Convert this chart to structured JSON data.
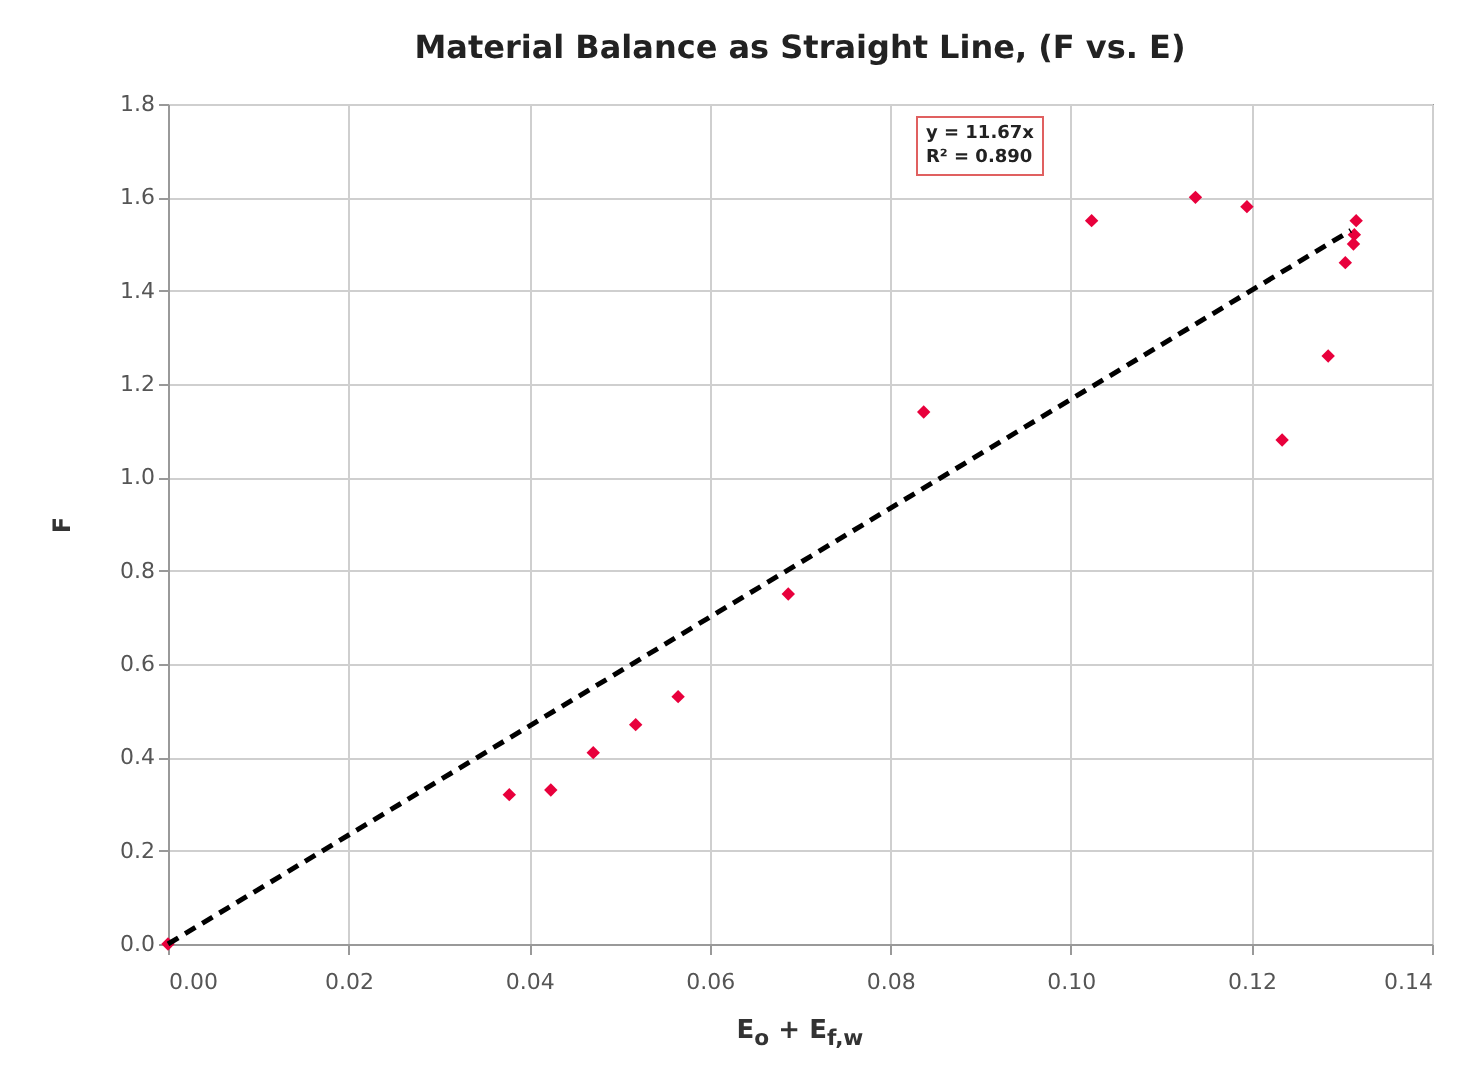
{
  "chart_data": {
    "type": "scatter",
    "title": "Material Balance as Straight Line, (F vs. E)",
    "xlabel": "E$_{o}$ + E$_{f,w}$",
    "ylabel": "F",
    "xlim": [
      0,
      0.14
    ],
    "xticks": [
      {
        "value": 0,
        "label": "0.00"
      },
      {
        "value": 0.02,
        "label": "0.02"
      },
      {
        "value": 0.04,
        "label": "0.04"
      },
      {
        "value": 0.06,
        "label": "0.06"
      },
      {
        "value": 0.08,
        "label": "0.08"
      },
      {
        "value": 0.1,
        "label": "0.10"
      },
      {
        "value": 0.12,
        "label": "0.12"
      },
      {
        "value": 0.14,
        "label": "0.14"
      }
    ],
    "ylim": [
      0,
      1.8
    ],
    "yticks": [
      {
        "value": 0,
        "label": "0.0"
      },
      {
        "value": 0.2,
        "label": "0.2"
      },
      {
        "value": 0.4,
        "label": "0.4"
      },
      {
        "value": 0.6,
        "label": "0.6"
      },
      {
        "value": 0.8,
        "label": "0.8"
      },
      {
        "value": 1,
        "label": "1.0"
      },
      {
        "value": 1.2,
        "label": "1.2"
      },
      {
        "value": 1.4,
        "label": "1.4"
      },
      {
        "value": 1.6,
        "label": "1.6"
      },
      {
        "value": 1.8,
        "label": "1.8"
      }
    ],
    "grid": true,
    "marker": "diamond",
    "series": [
      {
        "color": "#e8003c",
        "x": [
          0,
          0.0378,
          0.0424,
          0.0471,
          0.0518,
          0.0565,
          0.0687,
          0.0837,
          0.1023,
          0.1138,
          0.1195,
          0.1234,
          0.1285,
          0.1304,
          0.1316,
          0.1314,
          0.1313
        ],
        "values": [
          0,
          0.32,
          0.33,
          0.41,
          0.47,
          0.53,
          0.75,
          1.14,
          1.55,
          1.6,
          1.58,
          1.08,
          1.26,
          1.46,
          1.55,
          1.52,
          1.5
        ]
      },
      {
        "type": "line",
        "line_style": "dashed",
        "marker": "none",
        "color": "#000000",
        "x": [
          0,
          0.131
        ],
        "values": [
          0,
          1.529
        ]
      }
    ],
    "annotations": [
      "y = 11.67x",
      "R² = 0.890"
    ]
  }
}
